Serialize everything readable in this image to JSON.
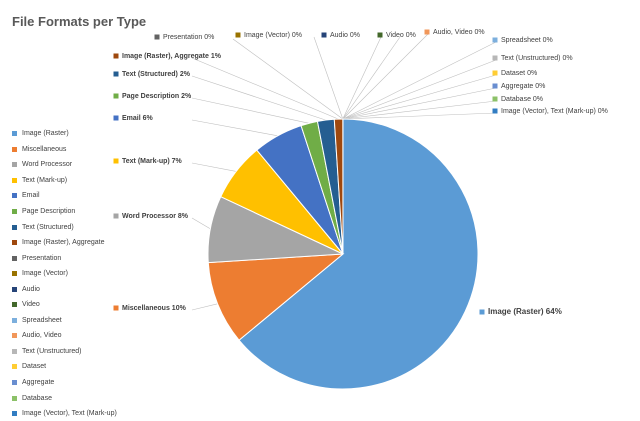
{
  "chart_data": {
    "type": "pie",
    "title": "File Formats per Type",
    "legend_position": "left",
    "slices": [
      {
        "name": "Image (Raster)",
        "value": 64,
        "label": "64%",
        "color": "#5B9BD5"
      },
      {
        "name": "Miscellaneous",
        "value": 10,
        "label": "10%",
        "color": "#ED7D31"
      },
      {
        "name": "Word Processor",
        "value": 8,
        "label": "8%",
        "color": "#A5A5A5"
      },
      {
        "name": "Text (Mark-up)",
        "value": 7,
        "label": "7%",
        "color": "#FFC000"
      },
      {
        "name": "Email",
        "value": 6,
        "label": "6%",
        "color": "#4472C4"
      },
      {
        "name": "Page Description",
        "value": 2,
        "label": "2%",
        "color": "#70AD47"
      },
      {
        "name": "Text (Structured)",
        "value": 2,
        "label": "2%",
        "color": "#255E91"
      },
      {
        "name": "Image (Raster), Aggregate",
        "value": 1,
        "label": "1%",
        "color": "#9E480E"
      },
      {
        "name": "Presentation",
        "value": 0,
        "label": "0%",
        "color": "#636363"
      },
      {
        "name": "Image (Vector)",
        "value": 0,
        "label": "0%",
        "color": "#997300"
      },
      {
        "name": "Audio",
        "value": 0,
        "label": "0%",
        "color": "#264478"
      },
      {
        "name": "Video",
        "value": 0,
        "label": "0%",
        "color": "#43682B"
      },
      {
        "name": "Spreadsheet",
        "value": 0,
        "label": "0%",
        "color": "#7CAFDD"
      },
      {
        "name": "Audio, Video",
        "value": 0,
        "label": "0%",
        "color": "#F1975A"
      },
      {
        "name": "Text (Unstructured)",
        "value": 0,
        "label": "0%",
        "color": "#B7B7B7"
      },
      {
        "name": "Dataset",
        "value": 0,
        "label": "0%",
        "color": "#FFCD33"
      },
      {
        "name": "Aggregate",
        "value": 0,
        "label": "0%",
        "color": "#698ED0"
      },
      {
        "name": "Database",
        "value": 0,
        "label": "0%",
        "color": "#8CC168"
      },
      {
        "name": "Image (Vector), Text (Mark-up)",
        "value": 0,
        "label": "0%",
        "color": "#327DC2"
      }
    ]
  }
}
